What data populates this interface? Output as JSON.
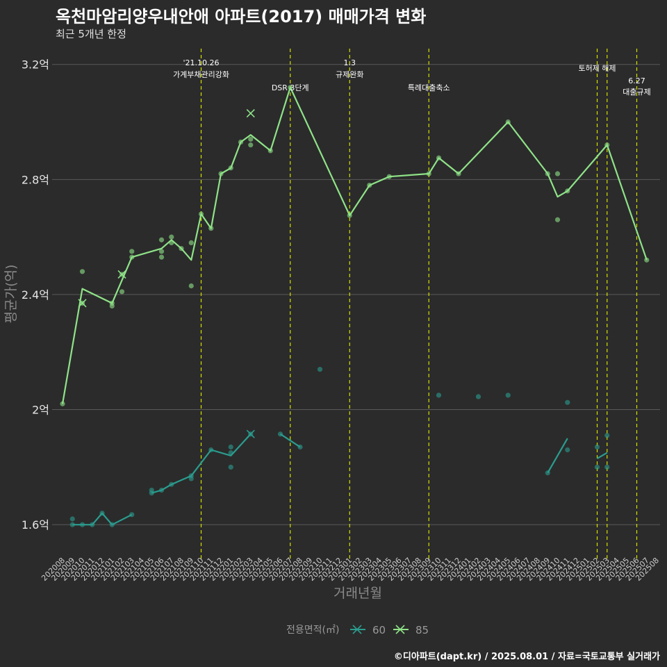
{
  "title": "옥천마암리양우내안애 아파트(2017) 매매가격 변화",
  "subtitle": "최근 5개년 한정",
  "caption": "©디아파트(dapt.kr) / 2025.08.01 / 자료=국토교통부 실거래가",
  "chart_data": {
    "type": "line",
    "xlabel": "거래년월",
    "ylabel": "평균가(억)",
    "ylim": [
      1.54,
      3.25
    ],
    "yticks": [
      1.6,
      2.0,
      2.4,
      2.8,
      3.2
    ],
    "ytick_labels": [
      "1.6억",
      "2억",
      "2.4억",
      "2.8억",
      "3.2억"
    ],
    "x_categories": [
      "202008",
      "202009",
      "202010",
      "202011",
      "202012",
      "202101",
      "202102",
      "202103",
      "202104",
      "202105",
      "202106",
      "202107",
      "202108",
      "202109",
      "202110",
      "202111",
      "202112",
      "202201",
      "202202",
      "202203",
      "202204",
      "202205",
      "202206",
      "202207",
      "202208",
      "202209",
      "202210",
      "202211",
      "202212",
      "202301",
      "202302",
      "202303",
      "202304",
      "202305",
      "202306",
      "202307",
      "202308",
      "202309",
      "202310",
      "202311",
      "202312",
      "202401",
      "202402",
      "202403",
      "202404",
      "202405",
      "202406",
      "202407",
      "202408",
      "202409",
      "202410",
      "202411",
      "202412",
      "202501",
      "202502",
      "202503",
      "202504",
      "202505",
      "202506",
      "202507",
      "202508"
    ],
    "legend": {
      "title": "전용면적(㎡)",
      "position": "bottom",
      "items": [
        "60",
        "85"
      ]
    },
    "colors": {
      "60": "#2a9d8f",
      "85": "#8fe388",
      "vline": "#d4e000",
      "grid": "#5a5a5a"
    },
    "events": [
      {
        "x": "202110",
        "lines": [
          "'21.10.26",
          "가계부채관리강화"
        ],
        "level": 1
      },
      {
        "x": "202207",
        "lines": [
          "DSR 3단계"
        ],
        "level": 2
      },
      {
        "x": "202301",
        "lines": [
          "1.3",
          "규제완화"
        ],
        "level": 1
      },
      {
        "x": "202309",
        "lines": [
          "특례대출축소"
        ],
        "level": 2
      },
      {
        "x": "202502",
        "lines": [
          "토허제 해제"
        ],
        "level": 1
      },
      {
        "x": "202503",
        "lines": [],
        "level": 1
      },
      {
        "x": "202506",
        "lines": [
          "6.27",
          "대출규제"
        ],
        "level": 3
      }
    ],
    "series": [
      {
        "name": "60",
        "segments": [
          [
            [
              "202009",
              1.6
            ],
            [
              "202010",
              1.6
            ],
            [
              "202011",
              1.6
            ],
            [
              "202012",
              1.64
            ],
            [
              "202101",
              1.6
            ],
            [
              "202103",
              1.635
            ]
          ],
          [
            [
              "202105",
              1.71
            ],
            [
              "202106",
              1.72
            ],
            [
              "202107",
              1.74
            ],
            [
              "202109",
              1.77
            ],
            [
              "202111",
              1.86
            ],
            [
              "202201",
              1.84
            ],
            [
              "202203",
              1.915
            ]
          ],
          [
            [
              "202206",
              1.915
            ],
            [
              "202208",
              1.87
            ]
          ],
          [
            [
              "202409",
              1.78
            ],
            [
              "202411",
              1.9
            ]
          ],
          [
            [
              "202502",
              1.83
            ],
            [
              "202503",
              1.85
            ]
          ]
        ],
        "points": [
          [
            "202009",
            1.62
          ],
          [
            "202009",
            1.6
          ],
          [
            "202010",
            1.6
          ],
          [
            "202011",
            1.6
          ],
          [
            "202012",
            1.64
          ],
          [
            "202101",
            1.6
          ],
          [
            "202103",
            1.635
          ],
          [
            "202105",
            1.72
          ],
          [
            "202105",
            1.71
          ],
          [
            "202106",
            1.72
          ],
          [
            "202107",
            1.74
          ],
          [
            "202109",
            1.77
          ],
          [
            "202109",
            1.76
          ],
          [
            "202111",
            1.86
          ],
          [
            "202201",
            1.87
          ],
          [
            "202201",
            1.85
          ],
          [
            "202201",
            1.8
          ],
          [
            "202203",
            1.915
          ],
          [
            "202206",
            1.915
          ],
          [
            "202208",
            1.87
          ],
          [
            "202210",
            2.14
          ],
          [
            "202310",
            2.05
          ],
          [
            "202402",
            2.045
          ],
          [
            "202405",
            2.05
          ],
          [
            "202409",
            1.78
          ],
          [
            "202411",
            2.025
          ],
          [
            "202411",
            1.86
          ],
          [
            "202502",
            1.87
          ],
          [
            "202502",
            1.8
          ],
          [
            "202503",
            1.91
          ],
          [
            "202503",
            1.8
          ]
        ],
        "x_markers": [
          [
            "202203",
            1.915
          ]
        ]
      },
      {
        "name": "85",
        "segments": [
          [
            [
              "202008",
              2.02
            ],
            [
              "202010",
              2.42
            ],
            [
              "202101",
              2.37
            ],
            [
              "202103",
              2.53
            ],
            [
              "202106",
              2.56
            ],
            [
              "202107",
              2.59
            ],
            [
              "202108",
              2.56
            ],
            [
              "202109",
              2.52
            ],
            [
              "202110",
              2.68
            ],
            [
              "202111",
              2.63
            ],
            [
              "202112",
              2.82
            ],
            [
              "202201",
              2.84
            ],
            [
              "202202",
              2.93
            ],
            [
              "202203",
              2.955
            ],
            [
              "202205",
              2.9
            ],
            [
              "202207",
              3.12
            ],
            [
              "202301",
              2.675
            ],
            [
              "202303",
              2.78
            ],
            [
              "202305",
              2.81
            ],
            [
              "202309",
              2.82
            ],
            [
              "202310",
              2.875
            ],
            [
              "202312",
              2.82
            ],
            [
              "202405",
              3.0
            ],
            [
              "202409",
              2.82
            ],
            [
              "202410",
              2.74
            ],
            [
              "202411",
              2.76
            ],
            [
              "202503",
              2.92
            ],
            [
              "202507",
              2.52
            ]
          ]
        ],
        "points": [
          [
            "202008",
            2.02
          ],
          [
            "202010",
            2.48
          ],
          [
            "202010",
            2.37
          ],
          [
            "202101",
            2.37
          ],
          [
            "202101",
            2.36
          ],
          [
            "202102",
            2.47
          ],
          [
            "202102",
            2.41
          ],
          [
            "202103",
            2.55
          ],
          [
            "202103",
            2.53
          ],
          [
            "202106",
            2.59
          ],
          [
            "202106",
            2.55
          ],
          [
            "202106",
            2.53
          ],
          [
            "202107",
            2.6
          ],
          [
            "202107",
            2.58
          ],
          [
            "202108",
            2.56
          ],
          [
            "202109",
            2.58
          ],
          [
            "202109",
            2.43
          ],
          [
            "202110",
            2.68
          ],
          [
            "202111",
            2.63
          ],
          [
            "202112",
            2.82
          ],
          [
            "202201",
            2.84
          ],
          [
            "202202",
            2.93
          ],
          [
            "202203",
            2.94
          ],
          [
            "202203",
            2.92
          ],
          [
            "202205",
            2.9
          ],
          [
            "202207",
            3.12
          ],
          [
            "202301",
            2.675
          ],
          [
            "202303",
            2.78
          ],
          [
            "202305",
            2.81
          ],
          [
            "202309",
            2.82
          ],
          [
            "202310",
            2.875
          ],
          [
            "202312",
            2.82
          ],
          [
            "202405",
            3.0
          ],
          [
            "202409",
            2.82
          ],
          [
            "202410",
            2.82
          ],
          [
            "202410",
            2.66
          ],
          [
            "202411",
            2.76
          ],
          [
            "202503",
            2.92
          ],
          [
            "202507",
            2.52
          ]
        ],
        "x_markers": [
          [
            "202010",
            2.37
          ],
          [
            "202102",
            2.47
          ],
          [
            "202203",
            3.03
          ]
        ]
      }
    ]
  }
}
